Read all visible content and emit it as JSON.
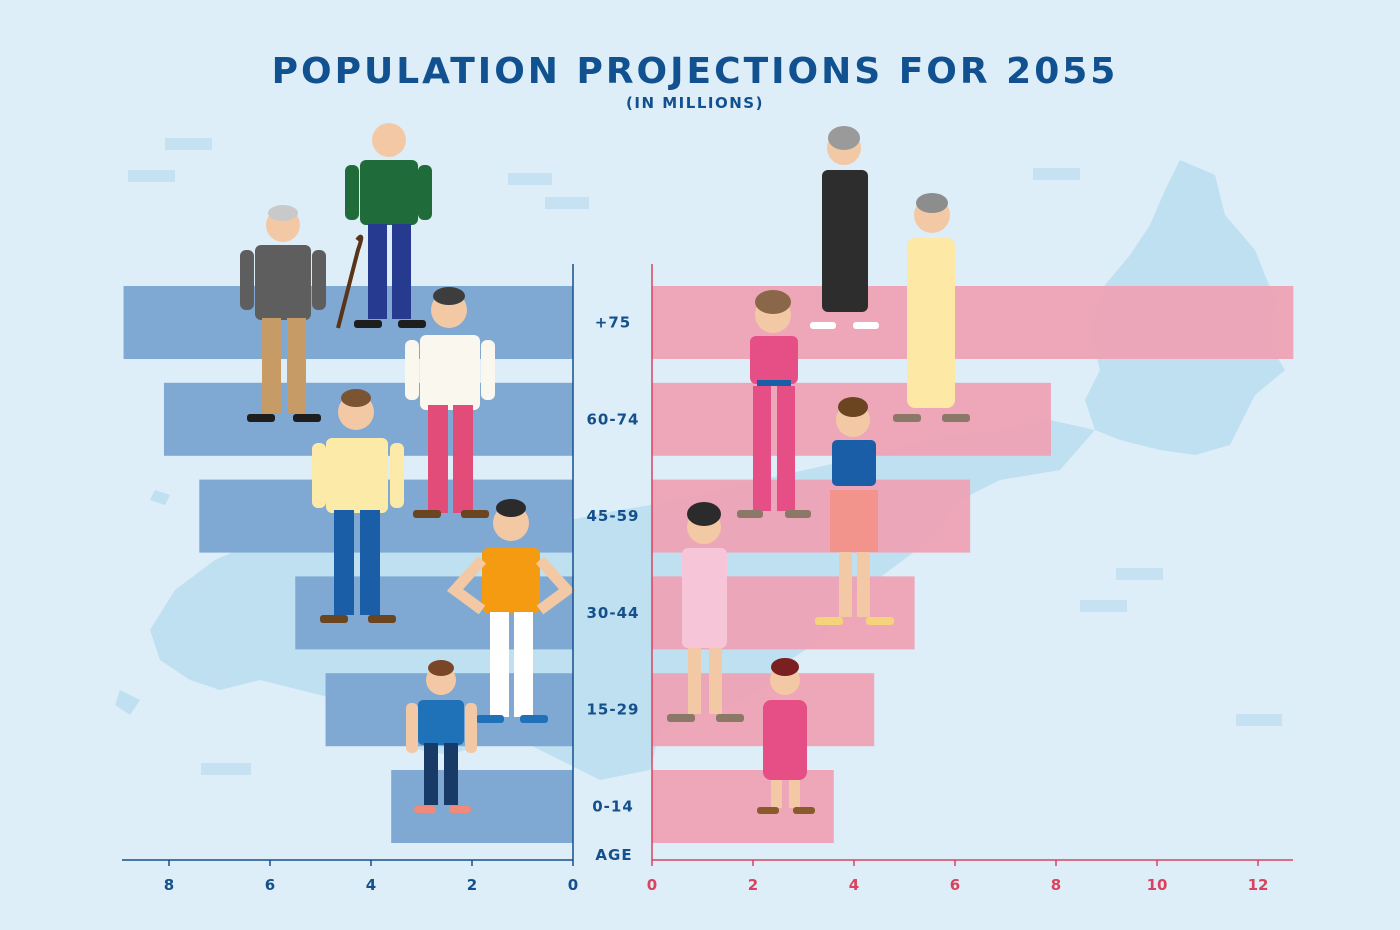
{
  "chart_data": {
    "type": "bar",
    "title": "POPULATION PROJECTIONS FOR 2055",
    "subtitle": "(IN MILLIONS)",
    "categories": [
      "+75",
      "60-74",
      "45-59",
      "30-44",
      "15-29",
      "0-14"
    ],
    "category_axis_label": "AGE",
    "series": [
      {
        "values": [
          8.9,
          8.1,
          7.4,
          5.5,
          4.9,
          3.6
        ]
      },
      {
        "values": [
          12.7,
          7.9,
          6.3,
          5.2,
          4.4,
          3.6
        ]
      }
    ],
    "left_axis": {
      "ticks": [
        "8",
        "6",
        "4",
        "2",
        "0"
      ],
      "range": [
        0,
        8.9
      ]
    },
    "right_axis": {
      "ticks": [
        "0",
        "2",
        "4",
        "6",
        "8",
        "10",
        "12"
      ],
      "range": [
        0,
        12.7
      ]
    },
    "colors": {
      "male_bar": "#7fa9d3",
      "female_bar": "#eea2b5",
      "male_axis": "#15508c",
      "female_axis": "#d9435f",
      "map": "#bfe0f0"
    },
    "grid": false
  }
}
